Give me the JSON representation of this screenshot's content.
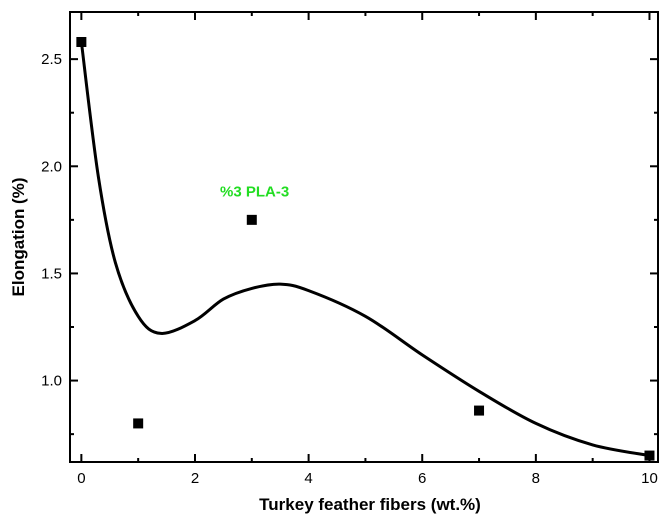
{
  "chart_data": {
    "type": "scatter",
    "xlabel": "Turkey feather fibers (wt.%)",
    "ylabel": "Elongation (%)",
    "xlim": [
      -0.2,
      10.15
    ],
    "ylim": [
      0.62,
      2.72
    ],
    "x_ticks": [
      0,
      2,
      4,
      6,
      8,
      10
    ],
    "x_tick_labels": [
      "0",
      "2",
      "4",
      "6",
      "8",
      "10"
    ],
    "y_ticks": [
      1.0,
      1.5,
      2.0,
      2.5
    ],
    "y_tick_labels": [
      "1.0",
      "1.5",
      "2.0",
      "2.5"
    ],
    "series": [
      {
        "type": "scatter",
        "marker": "square",
        "color": "#000000",
        "x": [
          0,
          1,
          3,
          7,
          10
        ],
        "y": [
          2.58,
          0.8,
          1.75,
          0.86,
          0.65
        ]
      }
    ],
    "fit_curve": {
      "type": "line",
      "color": "#000000",
      "smooth": true,
      "x": [
        0,
        0.3,
        0.6,
        1.0,
        1.4,
        2.0,
        2.5,
        3.0,
        3.5,
        4.0,
        5.0,
        6.0,
        7.0,
        8.0,
        9.0,
        10.0
      ],
      "y": [
        2.58,
        1.95,
        1.55,
        1.3,
        1.22,
        1.28,
        1.38,
        1.43,
        1.45,
        1.42,
        1.3,
        1.12,
        0.95,
        0.8,
        0.7,
        0.65
      ]
    },
    "annotations": [
      {
        "text": "%3 PLA-3",
        "x": 3.05,
        "y": 1.86,
        "color": "#22dd22"
      }
    ],
    "grid": false
  }
}
